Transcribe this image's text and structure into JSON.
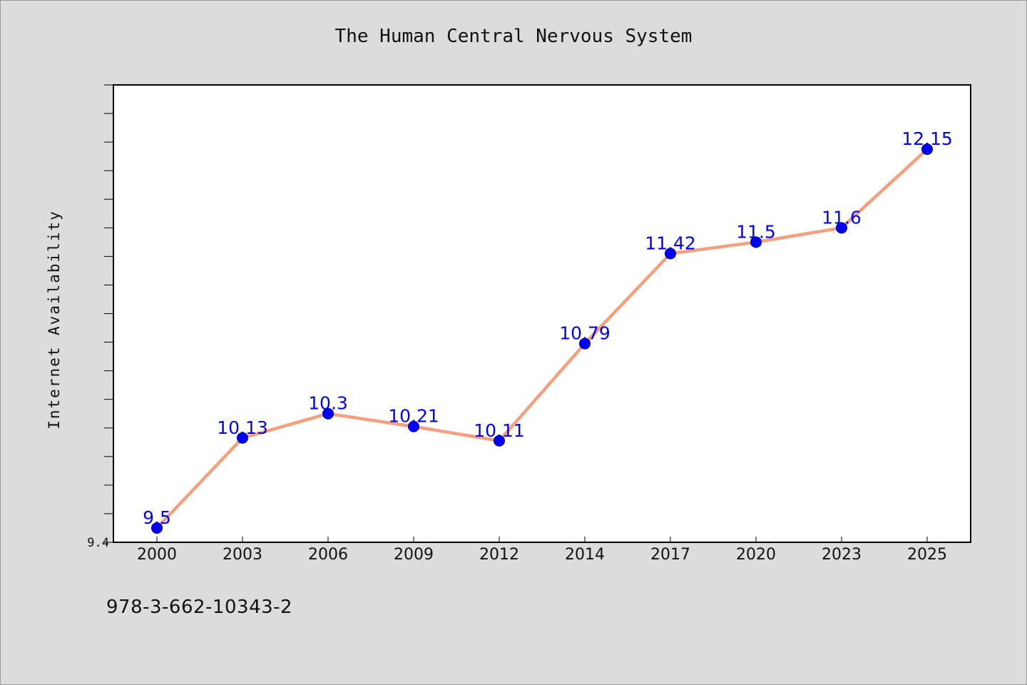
{
  "chart_data": {
    "type": "line",
    "title": "The Human Central Nervous System",
    "xlabel": "",
    "ylabel": "Internet Availability",
    "categories": [
      "2000",
      "2003",
      "2006",
      "2009",
      "2012",
      "2014",
      "2017",
      "2020",
      "2023",
      "2025"
    ],
    "series": [
      {
        "values": [
          9.5,
          10.13,
          10.3,
          10.21,
          10.11,
          10.79,
          11.42,
          11.5,
          11.6,
          12.15
        ]
      }
    ],
    "data_labels": [
      "9.5",
      "10.13",
      "10.3",
      "10.21",
      "10.11",
      "10.79",
      "11.42",
      "11.5",
      "11.6",
      "12.15"
    ],
    "ylim": [
      9.4,
      12.6
    ],
    "y_tick_labels": [
      "9.4"
    ],
    "grid": false,
    "colors": {
      "line": "#f4a07e",
      "marker": "#0000ff",
      "data_label": "#0000ff",
      "background": "#dcdcdc",
      "plot_background": "#ffffff"
    }
  },
  "footer": {
    "isbn": "978-3-662-10343-2"
  }
}
